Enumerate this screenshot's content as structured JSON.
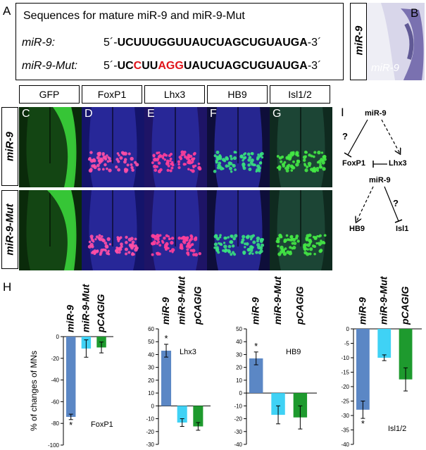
{
  "panel_labels": {
    "A": "A",
    "B": "B",
    "C": "C",
    "D": "D",
    "E": "E",
    "F": "F",
    "G": "G",
    "H": "H",
    "I": "I"
  },
  "sequences": {
    "title": "Sequences for mature miR-9 and miR-9-Mut",
    "rows": [
      {
        "name": "miR-9:",
        "prefix": "5´-",
        "segments": [
          {
            "text": "UCUUUGGUUAUCUAGCUGUAUGA",
            "red": false
          }
        ],
        "suffix": "-3´"
      },
      {
        "name": "miR-9-Mut:",
        "prefix": "5´-",
        "segments": [
          {
            "text": "UC",
            "red": false
          },
          {
            "text": "C",
            "red": true
          },
          {
            "text": "UU",
            "red": false
          },
          {
            "text": "A",
            "red": true
          },
          {
            "text": "G",
            "red": false
          },
          {
            "text": "G",
            "red": true
          },
          {
            "text": "UAUCUAGCUGUAUGA",
            "red": false
          }
        ],
        "suffix": "-3´"
      }
    ]
  },
  "panel_b": {
    "side_label": "miR-9",
    "image_label": "miR-9"
  },
  "stain_headers": [
    "GFP",
    "FoxP1",
    "Lhx3",
    "HB9",
    "Isl1/2"
  ],
  "row_labels": [
    "miR-9",
    "miR-9-Mut"
  ],
  "tiles_top": [
    "C",
    "D",
    "E",
    "F",
    "G"
  ],
  "diagram": {
    "top": {
      "source": "miR-9",
      "q": "?",
      "left": "FoxP1",
      "right": "Lhx3"
    },
    "bottom": {
      "source": "miR-9",
      "q": "?",
      "left": "HB9",
      "right": "Isl1"
    }
  },
  "colors": {
    "mir9": "#5b87c5",
    "mut": "#3fd2f5",
    "pcagig": "#1e9a2e",
    "red_nt": "#e0141a"
  },
  "chart_data": [
    {
      "type": "bar",
      "ylabel": "% of changes of MNs",
      "annotation": "FoxP1",
      "categories": [
        "miR-9",
        "miR-9-Mut",
        "pCAGIG"
      ],
      "values": [
        -74,
        -11,
        -10
      ],
      "errors": [
        2.5,
        8,
        5
      ],
      "significant": [
        true,
        false,
        false
      ],
      "star": "*",
      "ylim": [
        -100,
        0
      ],
      "yticks": [
        -100,
        -80,
        -60,
        -40,
        -20,
        0
      ]
    },
    {
      "type": "bar",
      "ylabel": "",
      "annotation": "Lhx3",
      "categories": [
        "miR-9",
        "miR-9-Mut",
        "pCAGIG"
      ],
      "values": [
        43,
        -13,
        -16
      ],
      "errors": [
        5,
        3,
        3
      ],
      "significant": [
        true,
        false,
        false
      ],
      "star": "*",
      "ylim": [
        -30,
        60
      ],
      "yticks": [
        -30,
        -20,
        -10,
        0,
        10,
        20,
        30,
        40,
        50,
        60
      ]
    },
    {
      "type": "bar",
      "ylabel": "",
      "annotation": "HB9",
      "categories": [
        "miR-9",
        "miR-9-Mut",
        "pCAGIG"
      ],
      "values": [
        27,
        -17,
        -19
      ],
      "errors": [
        5,
        7,
        9
      ],
      "significant": [
        true,
        false,
        false
      ],
      "star": "*",
      "ylim": [
        -40,
        50
      ],
      "yticks": [
        -40,
        -30,
        -20,
        -10,
        0,
        10,
        20,
        30,
        40,
        50
      ]
    },
    {
      "type": "bar",
      "ylabel": "",
      "annotation": "Isl1/2",
      "categories": [
        "miR-9",
        "miR-9-Mut",
        "pCAGIG"
      ],
      "values": [
        -28,
        -10,
        -17.5
      ],
      "errors": [
        3,
        1,
        4
      ],
      "significant": [
        true,
        false,
        false
      ],
      "star": "*",
      "ylim": [
        -40,
        0
      ],
      "yticks": [
        -40,
        -35,
        -30,
        -25,
        -20,
        -15,
        -10,
        -5,
        0
      ]
    }
  ]
}
